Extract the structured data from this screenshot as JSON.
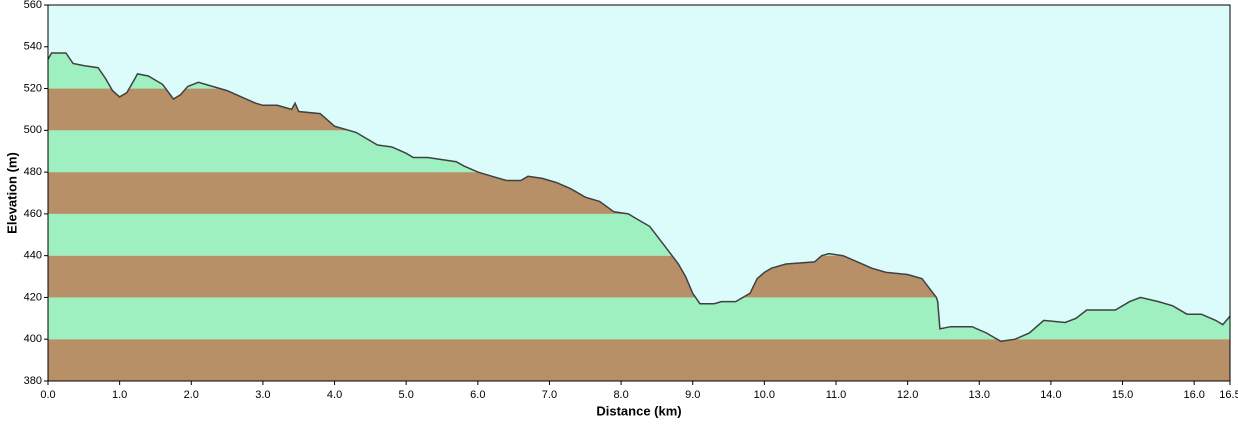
{
  "chart_data": {
    "type": "area",
    "xlabel": "Distance   (km)",
    "ylabel": "Elevation (m)",
    "x": [
      0.0,
      0.05,
      0.25,
      0.35,
      0.5,
      0.7,
      0.8,
      0.9,
      1.0,
      1.1,
      1.2,
      1.25,
      1.4,
      1.6,
      1.75,
      1.85,
      1.95,
      2.1,
      2.3,
      2.5,
      2.7,
      2.9,
      3.0,
      3.2,
      3.4,
      3.45,
      3.5,
      3.8,
      3.9,
      4.0,
      4.3,
      4.6,
      4.8,
      5.0,
      5.1,
      5.3,
      5.5,
      5.7,
      5.8,
      6.0,
      6.2,
      6.4,
      6.6,
      6.7,
      6.9,
      7.1,
      7.3,
      7.5,
      7.7,
      7.9,
      8.1,
      8.2,
      8.4,
      8.6,
      8.8,
      8.9,
      9.0,
      9.1,
      9.3,
      9.4,
      9.6,
      9.8,
      9.9,
      10.0,
      10.1,
      10.3,
      10.7,
      10.8,
      10.9,
      11.1,
      11.3,
      11.5,
      11.7,
      12.0,
      12.2,
      12.4,
      12.42,
      12.45,
      12.6,
      12.9,
      13.1,
      13.3,
      13.5,
      13.7,
      13.9,
      14.2,
      14.35,
      14.5,
      14.9,
      15.1,
      15.25,
      15.5,
      15.7,
      15.9,
      16.1,
      16.3,
      16.4,
      16.5
    ],
    "values": [
      534,
      537,
      537,
      532,
      531,
      530,
      525,
      519,
      516,
      518,
      524,
      527,
      526,
      522,
      515,
      517,
      521,
      523,
      521,
      519,
      516,
      513,
      512,
      512,
      510,
      513,
      509,
      508,
      505,
      502,
      499,
      493,
      492,
      489,
      487,
      487,
      486,
      485,
      483,
      480,
      478,
      476,
      476,
      478,
      477,
      475,
      472,
      468,
      466,
      461,
      460,
      458,
      454,
      445,
      436,
      430,
      422,
      417,
      417,
      418,
      418,
      422,
      429,
      432,
      434,
      436,
      437,
      440,
      441,
      440,
      437,
      434,
      432,
      431,
      429,
      420,
      418,
      405,
      406,
      406,
      403,
      399,
      400,
      403,
      409,
      408,
      410,
      414,
      414,
      418,
      420,
      418,
      416,
      412,
      412,
      409,
      407,
      411
    ],
    "line_color": "#404040",
    "background_color": "#dcfcfc",
    "band_colors": [
      "#b89068",
      "#9ef0c0"
    ],
    "xlim": [
      0,
      16.5
    ],
    "xticks": [
      {
        "value": 0,
        "label": "0.0"
      },
      {
        "value": 1,
        "label": "1.0"
      },
      {
        "value": 2,
        "label": "2.0"
      },
      {
        "value": 3,
        "label": "3.0"
      },
      {
        "value": 4,
        "label": "4.0"
      },
      {
        "value": 5,
        "label": "5.0"
      },
      {
        "value": 6,
        "label": "6.0"
      },
      {
        "value": 7,
        "label": "7.0"
      },
      {
        "value": 8,
        "label": "8.0"
      },
      {
        "value": 9,
        "label": "9.0"
      },
      {
        "value": 10,
        "label": "10.0"
      },
      {
        "value": 11,
        "label": "11.0"
      },
      {
        "value": 12,
        "label": "12.0"
      },
      {
        "value": 13,
        "label": "13.0"
      },
      {
        "value": 14,
        "label": "14.0"
      },
      {
        "value": 15,
        "label": "15.0"
      },
      {
        "value": 16,
        "label": "16.0"
      },
      16.5
    ],
    "ylim": [
      380,
      560
    ],
    "yticks": [
      380,
      400,
      420,
      440,
      460,
      480,
      500,
      520,
      540,
      560
    ]
  }
}
